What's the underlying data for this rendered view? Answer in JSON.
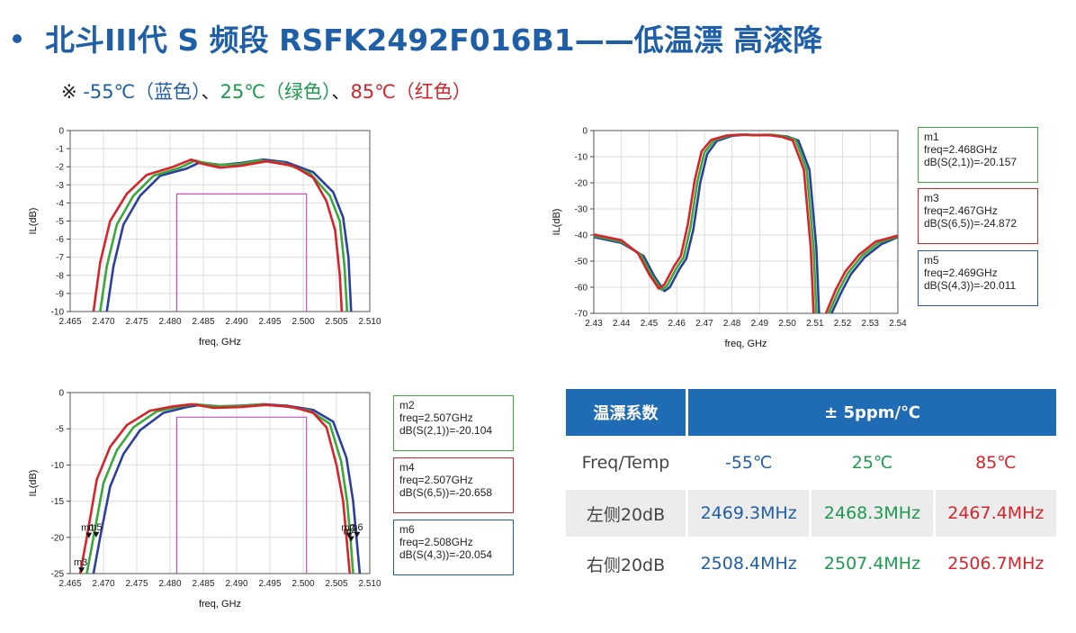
{
  "title": "北斗III代 S 频段 RSFK2492F016B1——低温漂  高滚降",
  "legend_note": {
    "prefix": "※ ",
    "items": [
      {
        "text": "-55℃（蓝色）",
        "color": "#1f5fa8"
      },
      {
        "text": "、",
        "color": "#222222"
      },
      {
        "text": "25℃（绿色）",
        "color": "#1c9a4e"
      },
      {
        "text": "、",
        "color": "#222222"
      },
      {
        "text": "85℃（红色）",
        "color": "#d8232a"
      }
    ]
  },
  "colors": {
    "blue": "#2b3fa0",
    "green": "#3aa83a",
    "red": "#d8232a",
    "spec_box": "#c050c0"
  },
  "chart_data": [
    {
      "type": "line",
      "xlabel": "freq, GHz",
      "ylabel": "IL(dB)",
      "xlim": [
        2.465,
        2.51
      ],
      "ylim": [
        -10,
        0
      ],
      "xticks": [
        "2.465",
        "2.470",
        "2.475",
        "2.480",
        "2.485",
        "2.490",
        "2.495",
        "2.500",
        "2.505",
        "2.510"
      ],
      "yticks": [
        "0",
        "-1",
        "-2",
        "-3",
        "-4",
        "-5",
        "-6",
        "-7",
        "-8",
        "-9",
        "-10"
      ],
      "grid": true,
      "spec_box": {
        "x": [
          2.481,
          2.5005
        ],
        "y": [
          -3.5,
          -10
        ]
      },
      "series": [
        {
          "color": "blue",
          "points": [
            [
              2.4705,
              -10
            ],
            [
              2.4715,
              -7.5
            ],
            [
              2.473,
              -5.2
            ],
            [
              2.4755,
              -3.6
            ],
            [
              2.4785,
              -2.5
            ],
            [
              2.4825,
              -2.1
            ],
            [
              2.4845,
              -1.75
            ],
            [
              2.4855,
              -1.8
            ],
            [
              2.4875,
              -1.9
            ],
            [
              2.4905,
              -1.8
            ],
            [
              2.494,
              -1.6
            ],
            [
              2.4975,
              -1.75
            ],
            [
              2.5015,
              -2.3
            ],
            [
              2.5045,
              -3.4
            ],
            [
              2.506,
              -4.8
            ],
            [
              2.5068,
              -7
            ],
            [
              2.5072,
              -10
            ]
          ]
        },
        {
          "color": "green",
          "points": [
            [
              2.4695,
              -10
            ],
            [
              2.4705,
              -7.5
            ],
            [
              2.472,
              -5.2
            ],
            [
              2.4745,
              -3.6
            ],
            [
              2.4775,
              -2.5
            ],
            [
              2.4815,
              -2.05
            ],
            [
              2.4838,
              -1.65
            ],
            [
              2.4848,
              -1.75
            ],
            [
              2.487,
              -1.9
            ],
            [
              2.4905,
              -1.85
            ],
            [
              2.4935,
              -1.65
            ],
            [
              2.497,
              -1.8
            ],
            [
              2.501,
              -2.35
            ],
            [
              2.504,
              -3.6
            ],
            [
              2.5055,
              -5
            ],
            [
              2.5062,
              -7.5
            ],
            [
              2.5066,
              -10
            ]
          ]
        },
        {
          "color": "red",
          "points": [
            [
              2.4685,
              -10
            ],
            [
              2.4695,
              -7.3
            ],
            [
              2.471,
              -5
            ],
            [
              2.4735,
              -3.5
            ],
            [
              2.4765,
              -2.45
            ],
            [
              2.4805,
              -2.0
            ],
            [
              2.4832,
              -1.6
            ],
            [
              2.4845,
              -1.8
            ],
            [
              2.4875,
              -2.05
            ],
            [
              2.4905,
              -1.95
            ],
            [
              2.4945,
              -1.7
            ],
            [
              2.4985,
              -1.95
            ],
            [
              2.5015,
              -2.6
            ],
            [
              2.5035,
              -3.9
            ],
            [
              2.5048,
              -5.5
            ],
            [
              2.5055,
              -8
            ],
            [
              2.5058,
              -10
            ]
          ]
        }
      ]
    },
    {
      "type": "line",
      "xlabel": "freq, GHz",
      "ylabel": "IL(dB)",
      "xlim": [
        2.43,
        2.54
      ],
      "ylim": [
        -70,
        0
      ],
      "xticks": [
        "2.43",
        "2.44",
        "2.45",
        "2.46",
        "2.47",
        "2.48",
        "2.49",
        "2.50",
        "2.51",
        "2.52",
        "2.53",
        "2.54"
      ],
      "yticks": [
        "0",
        "-10",
        "-20",
        "-30",
        "-40",
        "-50",
        "-60",
        "-70"
      ],
      "grid": true,
      "markers": [
        {
          "name": "m1",
          "freq": "freq=2.468GHz",
          "db": "dB(S(2,1))=-20.157",
          "color": "green"
        },
        {
          "name": "m3",
          "freq": "freq=2.467GHz",
          "db": "dB(S(6,5))=-24.872",
          "color": "red"
        },
        {
          "name": "m5",
          "freq": "freq=2.469GHz",
          "db": "dB(S(4,3))=-20.011",
          "color": "blue"
        }
      ],
      "series": [
        {
          "color": "blue",
          "points": [
            [
              2.43,
              -40.8
            ],
            [
              2.44,
              -43
            ],
            [
              2.448,
              -48
            ],
            [
              2.452,
              -56
            ],
            [
              2.4555,
              -61.5
            ],
            [
              2.4575,
              -60
            ],
            [
              2.461,
              -53
            ],
            [
              2.4635,
              -49
            ],
            [
              2.466,
              -38
            ],
            [
              2.4685,
              -20
            ],
            [
              2.471,
              -9
            ],
            [
              2.4745,
              -4
            ],
            [
              2.48,
              -2
            ],
            [
              2.485,
              -1.6
            ],
            [
              2.49,
              -1.8
            ],
            [
              2.495,
              -1.7
            ],
            [
              2.5,
              -2.3
            ],
            [
              2.504,
              -3.8
            ],
            [
              2.508,
              -15
            ],
            [
              2.5105,
              -45
            ],
            [
              2.5115,
              -70
            ]
          ]
        },
        {
          "color": "green",
          "points": [
            [
              2.43,
              -40.3
            ],
            [
              2.44,
              -42.5
            ],
            [
              2.447,
              -47.5
            ],
            [
              2.451,
              -55.5
            ],
            [
              2.4545,
              -61
            ],
            [
              2.4565,
              -59.5
            ],
            [
              2.46,
              -52.5
            ],
            [
              2.4625,
              -48.5
            ],
            [
              2.465,
              -37
            ],
            [
              2.4675,
              -19.5
            ],
            [
              2.47,
              -8.5
            ],
            [
              2.4735,
              -3.8
            ],
            [
              2.479,
              -1.9
            ],
            [
              2.484,
              -1.5
            ],
            [
              2.489,
              -1.7
            ],
            [
              2.494,
              -1.6
            ],
            [
              2.499,
              -2.3
            ],
            [
              2.503,
              -3.6
            ],
            [
              2.507,
              -15
            ],
            [
              2.5095,
              -45
            ],
            [
              2.5105,
              -70
            ]
          ]
        },
        {
          "color": "red",
          "points": [
            [
              2.43,
              -39.8
            ],
            [
              2.44,
              -42
            ],
            [
              2.446,
              -47
            ],
            [
              2.45,
              -55
            ],
            [
              2.4535,
              -60.5
            ],
            [
              2.4555,
              -59
            ],
            [
              2.459,
              -52
            ],
            [
              2.4615,
              -48
            ],
            [
              2.464,
              -36
            ],
            [
              2.4665,
              -19
            ],
            [
              2.469,
              -8
            ],
            [
              2.4725,
              -3.6
            ],
            [
              2.478,
              -1.9
            ],
            [
              2.483,
              -1.6
            ],
            [
              2.488,
              -1.8
            ],
            [
              2.493,
              -1.7
            ],
            [
              2.498,
              -2.4
            ],
            [
              2.502,
              -3.8
            ],
            [
              2.506,
              -15
            ],
            [
              2.5085,
              -45
            ],
            [
              2.5095,
              -70
            ]
          ]
        },
        {
          "color": "blue",
          "points": [
            [
              2.516,
              -70
            ],
            [
              2.5195,
              -62
            ],
            [
              2.523,
              -55
            ],
            [
              2.528,
              -48.5
            ],
            [
              2.534,
              -43.5
            ],
            [
              2.54,
              -40.8
            ]
          ]
        },
        {
          "color": "green",
          "points": [
            [
              2.515,
              -70
            ],
            [
              2.5185,
              -61.5
            ],
            [
              2.522,
              -54.5
            ],
            [
              2.527,
              -48
            ],
            [
              2.533,
              -43
            ],
            [
              2.54,
              -40.5
            ]
          ]
        },
        {
          "color": "red",
          "points": [
            [
              2.514,
              -70
            ],
            [
              2.5175,
              -61
            ],
            [
              2.521,
              -54
            ],
            [
              2.526,
              -47.5
            ],
            [
              2.532,
              -42.5
            ],
            [
              2.54,
              -40.2
            ]
          ]
        }
      ]
    },
    {
      "type": "line",
      "xlabel": "freq, GHz",
      "ylabel": "IL(dB)",
      "xlim": [
        2.465,
        2.51
      ],
      "ylim": [
        -25,
        0
      ],
      "xticks": [
        "2.465",
        "2.470",
        "2.475",
        "2.480",
        "2.485",
        "2.490",
        "2.495",
        "2.500",
        "2.505",
        "2.510"
      ],
      "yticks": [
        "0",
        "-5",
        "-10",
        "-15",
        "-20",
        "-25"
      ],
      "grid": true,
      "spec_box": {
        "x": [
          2.481,
          2.5005
        ],
        "y": [
          -3.4,
          -25
        ]
      },
      "markers": [
        {
          "name": "m2",
          "freq": "freq=2.507GHz",
          "db": "dB(S(2,1))=-20.104",
          "color": "green"
        },
        {
          "name": "m4",
          "freq": "freq=2.507GHz",
          "db": "dB(S(6,5))=-20.658",
          "color": "red"
        },
        {
          "name": "m6",
          "freq": "freq=2.508GHz",
          "db": "dB(S(4,3))=-20.054",
          "color": "blue"
        }
      ],
      "plot_labels": [
        {
          "text": "m3",
          "x": 2.4667,
          "y": -24.9
        },
        {
          "text": "m1",
          "x": 2.4678,
          "y": -20.1
        },
        {
          "text": "m5",
          "x": 2.4689,
          "y": -20.0
        },
        {
          "text": "m2",
          "x": 2.5069,
          "y": -20.1
        },
        {
          "text": "m4",
          "x": 2.5072,
          "y": -20.6
        },
        {
          "text": "m6",
          "x": 2.5081,
          "y": -20.0
        }
      ],
      "series": [
        {
          "color": "blue",
          "points": [
            [
              2.4685,
              -25
            ],
            [
              2.4695,
              -20
            ],
            [
              2.471,
              -13
            ],
            [
              2.473,
              -8.5
            ],
            [
              2.4755,
              -5.2
            ],
            [
              2.479,
              -2.8
            ],
            [
              2.4825,
              -2
            ],
            [
              2.4845,
              -1.7
            ],
            [
              2.4875,
              -1.9
            ],
            [
              2.4905,
              -1.8
            ],
            [
              2.494,
              -1.6
            ],
            [
              2.4975,
              -1.8
            ],
            [
              2.5015,
              -2.4
            ],
            [
              2.5045,
              -4
            ],
            [
              2.5065,
              -9
            ],
            [
              2.5075,
              -15
            ],
            [
              2.508,
              -20
            ],
            [
              2.5085,
              -25
            ]
          ]
        },
        {
          "color": "green",
          "points": [
            [
              2.4675,
              -25
            ],
            [
              2.4685,
              -20
            ],
            [
              2.47,
              -12.5
            ],
            [
              2.472,
              -8
            ],
            [
              2.4745,
              -4.8
            ],
            [
              2.478,
              -2.6
            ],
            [
              2.4815,
              -1.9
            ],
            [
              2.4838,
              -1.6
            ],
            [
              2.487,
              -1.9
            ],
            [
              2.4905,
              -1.85
            ],
            [
              2.4935,
              -1.65
            ],
            [
              2.497,
              -1.85
            ],
            [
              2.501,
              -2.5
            ],
            [
              2.504,
              -4.3
            ],
            [
              2.5057,
              -9.5
            ],
            [
              2.5066,
              -15
            ],
            [
              2.5071,
              -20
            ],
            [
              2.5075,
              -25
            ]
          ]
        },
        {
          "color": "red",
          "points": [
            [
              2.4665,
              -25
            ],
            [
              2.4675,
              -20
            ],
            [
              2.469,
              -12
            ],
            [
              2.471,
              -7.5
            ],
            [
              2.4735,
              -4.5
            ],
            [
              2.477,
              -2.5
            ],
            [
              2.4805,
              -1.9
            ],
            [
              2.4832,
              -1.6
            ],
            [
              2.4865,
              -2.1
            ],
            [
              2.4905,
              -2
            ],
            [
              2.4945,
              -1.7
            ],
            [
              2.4985,
              -2
            ],
            [
              2.5015,
              -2.8
            ],
            [
              2.5035,
              -4.8
            ],
            [
              2.505,
              -10
            ],
            [
              2.506,
              -15
            ],
            [
              2.5065,
              -20
            ],
            [
              2.507,
              -25
            ]
          ]
        }
      ]
    }
  ],
  "table": {
    "header": {
      "label": "温漂系数",
      "value": "± 5ppm/℃"
    },
    "rows": [
      {
        "label": "Freq/Temp",
        "values": [
          "-55℃",
          "25℃",
          "85℃"
        ]
      },
      {
        "label": "左侧20dB",
        "values": [
          "2469.3MHz",
          "2468.3MHz",
          "2467.4MHz"
        ]
      },
      {
        "label": "右侧20dB",
        "values": [
          "2508.4MHz",
          "2507.4MHz",
          "2506.7MHz"
        ]
      }
    ]
  }
}
